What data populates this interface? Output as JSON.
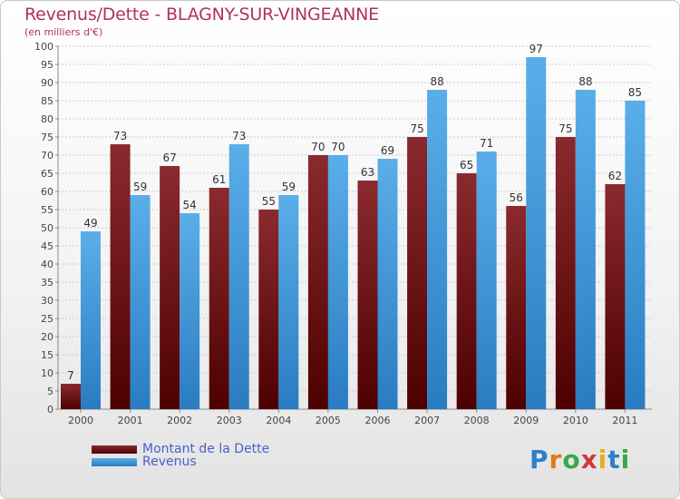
{
  "header": {
    "title": "Revenus/Dette - BLAGNY-SUR-VINGEANNE",
    "subtitle": "(en milliers d'€)"
  },
  "legend": {
    "debt_label": "Montant de la Dette",
    "revenue_label": "Revenus"
  },
  "logo": {
    "text": "Proxiti"
  },
  "colors": {
    "debt": "#7a1a1e",
    "debt_dark": "#4d0000",
    "revenue": "#5aaee8",
    "revenue_dark": "#2a7cc2",
    "title": "#b03060",
    "legend_text": "#4a5fc9"
  },
  "chart_data": {
    "type": "bar",
    "title": "Revenus/Dette - BLAGNY-SUR-VINGEANNE",
    "subtitle": "(en milliers d'€)",
    "xlabel": "",
    "ylabel": "",
    "ylim": [
      0,
      100
    ],
    "ytick_step": 5,
    "grid": true,
    "legend_position": "bottom-left",
    "categories": [
      "2000",
      "2001",
      "2002",
      "2003",
      "2004",
      "2005",
      "2006",
      "2007",
      "2008",
      "2009",
      "2010",
      "2011"
    ],
    "series": [
      {
        "name": "Montant de la Dette",
        "values": [
          7,
          73,
          67,
          61,
          55,
          70,
          63,
          75,
          65,
          56,
          75,
          62
        ]
      },
      {
        "name": "Revenus",
        "values": [
          49,
          59,
          54,
          73,
          59,
          70,
          69,
          88,
          71,
          97,
          88,
          85
        ]
      }
    ]
  }
}
